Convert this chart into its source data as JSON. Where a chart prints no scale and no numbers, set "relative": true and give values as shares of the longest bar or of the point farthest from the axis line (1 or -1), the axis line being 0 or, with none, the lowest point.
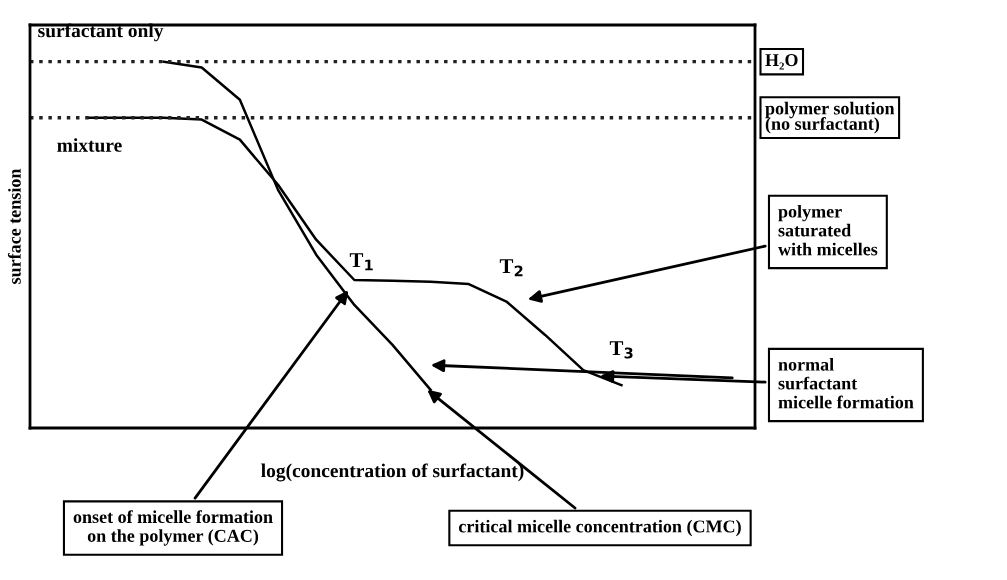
{
  "chart_data": {
    "type": "line",
    "relative": true,
    "xlabel": "log(concentration of surfactant)",
    "ylabel": "surface tension",
    "categories": [
      null,
      null,
      null,
      null,
      null,
      null,
      null,
      null,
      null,
      null,
      null,
      null,
      null,
      null,
      null,
      null,
      null,
      null,
      null
    ],
    "series": [
      {
        "name": "surfactant only",
        "color": "#000000",
        "values": [
          null,
          null,
          null,
          1.0,
          0.984,
          0.896,
          0.65,
          0.473,
          0.336,
          0.227,
          0.104,
          null,
          null,
          null,
          null,
          null,
          null,
          null,
          null
        ]
      },
      {
        "name": "mixture",
        "color": "#000000",
        "values": [
          null,
          0.847,
          0.847,
          0.847,
          0.842,
          0.787,
          0.664,
          0.514,
          0.404,
          0.402,
          0.399,
          0.393,
          0.344,
          0.254,
          0.158,
          0.117,
          null,
          null,
          null
        ]
      }
    ],
    "ref_lines": [
      {
        "axis": "y",
        "value": 1.0,
        "label": "H₂O",
        "color": "#222222",
        "line_style": "dotted"
      },
      {
        "axis": "y",
        "value": 0.847,
        "label": "polymer solution\n(no surfactant)",
        "color": "#222222",
        "line_style": "dotted"
      }
    ],
    "annotations": [
      "T$_{1}$",
      "T$_{2}$",
      "T$_{3}$",
      "polymer\nsaturated\nwith micelles",
      "normal\nsurfactant\nmicelle formation",
      "onset of micelle formation\non the polymer (CAC)",
      "critical micelle concentration (CMC)"
    ],
    "line_style": "solid",
    "marker": "none",
    "legend": false,
    "grid": false
  }
}
